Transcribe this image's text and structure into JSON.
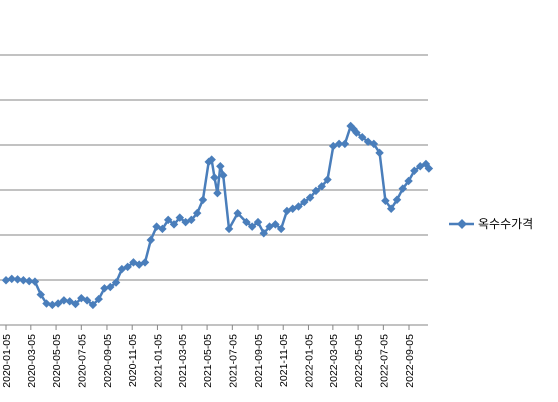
{
  "chart_data": {
    "type": "line",
    "x_tick_labels": [
      "2020-01-05",
      "2020-03-05",
      "2020-05-05",
      "2020-07-05",
      "2020-09-05",
      "2020-11-05",
      "2021-01-05",
      "2021-03-05",
      "2021-05-05",
      "2021-07-05",
      "2021-09-05",
      "2021-11-05",
      "2022-01-05",
      "2022-03-05",
      "2022-05-05",
      "2022-07-05",
      "2022-09-05"
    ],
    "legend_position": "right",
    "grid": true,
    "ylim": [
      0,
      7
    ],
    "series": [
      {
        "name": "옥수수가격",
        "color": "#4a7ebb",
        "x": [
          "2020-01-05",
          "2020-01-19",
          "2020-02-02",
          "2020-02-16",
          "2020-03-01",
          "2020-03-15",
          "2020-03-29",
          "2020-04-12",
          "2020-04-26",
          "2020-05-10",
          "2020-05-24",
          "2020-06-07",
          "2020-06-21",
          "2020-07-05",
          "2020-07-19",
          "2020-08-02",
          "2020-08-16",
          "2020-08-30",
          "2020-09-13",
          "2020-09-27",
          "2020-10-11",
          "2020-10-25",
          "2020-11-08",
          "2020-11-22",
          "2020-12-06",
          "2020-12-20",
          "2021-01-03",
          "2021-01-17",
          "2021-01-31",
          "2021-02-14",
          "2021-02-28",
          "2021-03-14",
          "2021-03-28",
          "2021-04-11",
          "2021-04-25",
          "2021-05-09",
          "2021-05-16",
          "2021-05-23",
          "2021-05-30",
          "2021-06-06",
          "2021-06-13",
          "2021-06-27",
          "2021-07-18",
          "2021-08-08",
          "2021-08-22",
          "2021-09-05",
          "2021-09-19",
          "2021-10-03",
          "2021-10-17",
          "2021-10-31",
          "2021-11-14",
          "2021-11-28",
          "2021-12-12",
          "2021-12-26",
          "2022-01-09",
          "2022-01-23",
          "2022-02-06",
          "2022-02-20",
          "2022-03-06",
          "2022-03-20",
          "2022-04-03",
          "2022-04-17",
          "2022-04-24",
          "2022-05-01",
          "2022-05-15",
          "2022-05-29",
          "2022-06-12",
          "2022-06-26",
          "2022-07-10",
          "2022-07-24",
          "2022-08-07",
          "2022-08-21",
          "2022-09-04",
          "2022-09-18",
          "2022-10-02",
          "2022-10-16",
          "2022-10-23"
        ],
        "values": [
          1.0,
          1.03,
          1.02,
          1.0,
          0.98,
          0.97,
          0.68,
          0.48,
          0.45,
          0.48,
          0.55,
          0.53,
          0.47,
          0.6,
          0.55,
          0.45,
          0.58,
          0.82,
          0.85,
          0.95,
          1.25,
          1.3,
          1.4,
          1.35,
          1.4,
          1.9,
          2.2,
          2.15,
          2.35,
          2.25,
          2.4,
          2.3,
          2.35,
          2.5,
          2.8,
          3.65,
          3.7,
          3.3,
          2.95,
          3.55,
          3.35,
          2.15,
          2.5,
          2.3,
          2.2,
          2.3,
          2.05,
          2.2,
          2.25,
          2.15,
          2.55,
          2.6,
          2.65,
          2.75,
          2.85,
          3.0,
          3.1,
          3.25,
          4.0,
          4.05,
          4.05,
          4.45,
          4.38,
          4.3,
          4.2,
          4.1,
          4.05,
          3.85,
          2.78,
          2.6,
          2.8,
          3.05,
          3.22,
          3.45,
          3.55,
          3.6,
          3.5
        ]
      }
    ]
  }
}
